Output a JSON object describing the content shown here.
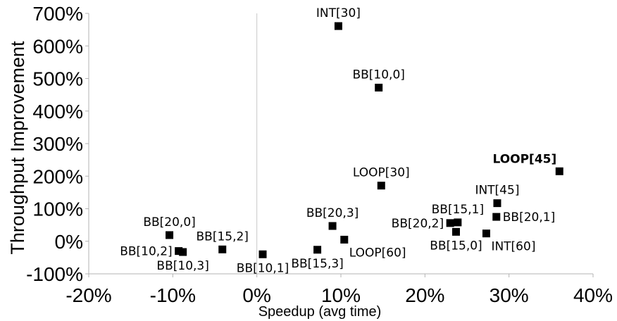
{
  "chart_data": {
    "type": "scatter",
    "title": "",
    "xlabel": "Speedup (avg time)",
    "ylabel": "Throughput Improvement",
    "xlim": [
      -20,
      40
    ],
    "ylim": [
      -100,
      700
    ],
    "xticks": [
      "-20%",
      "-10%",
      "0%",
      "10%",
      "20%",
      "30%",
      "40%"
    ],
    "yticks": [
      "700%",
      "600%",
      "500%",
      "400%",
      "300%",
      "200%",
      "100%",
      "0%",
      "-100%"
    ],
    "grid": "major vertical line at x=0 only",
    "legend": "none",
    "marker": "square",
    "marker_color": "#000000",
    "points": [
      {
        "label": "INT[30]",
        "x": 9.7,
        "y": 661,
        "label_pos": "above"
      },
      {
        "label": "BB[10,0]",
        "x": 14.5,
        "y": 472,
        "label_pos": "above"
      },
      {
        "label": "LOOP[45]",
        "x": 36.0,
        "y": 215,
        "label_pos": "above-left",
        "bold": true
      },
      {
        "label": "LOOP[30]",
        "x": 14.8,
        "y": 171,
        "label_pos": "above"
      },
      {
        "label": "INT[45]",
        "x": 28.6,
        "y": 117,
        "label_pos": "above"
      },
      {
        "label": "BB[15,1]",
        "x": 23.9,
        "y": 58,
        "label_pos": "above"
      },
      {
        "label": "BB[20,1]",
        "x": 28.5,
        "y": 75,
        "label_pos": "right"
      },
      {
        "label": "BB[20,2]",
        "x": 23.0,
        "y": 56,
        "label_pos": "left"
      },
      {
        "label": "BB[15,0]",
        "x": 23.7,
        "y": 29,
        "label_pos": "below"
      },
      {
        "label": "INT[60]",
        "x": 27.3,
        "y": 24,
        "label_pos": "below-right"
      },
      {
        "label": "BB[20,3]",
        "x": 9.0,
        "y": 47,
        "label_pos": "above"
      },
      {
        "label": "LOOP[60]",
        "x": 10.4,
        "y": 5,
        "label_pos": "below-right"
      },
      {
        "label": "BB[15,3]",
        "x": 7.2,
        "y": -26,
        "label_pos": "below"
      },
      {
        "label": "BB[10,1]",
        "x": 0.7,
        "y": -40,
        "label_pos": "below"
      },
      {
        "label": "BB[15,2]",
        "x": -4.1,
        "y": -25,
        "label_pos": "above"
      },
      {
        "label": "BB[20,0]",
        "x": -10.4,
        "y": 19,
        "label_pos": "above"
      },
      {
        "label": "BB[10,2]",
        "x": -9.3,
        "y": -30,
        "label_pos": "left"
      },
      {
        "label": "BB[10,3]",
        "x": -8.8,
        "y": -33,
        "label_pos": "below"
      }
    ]
  }
}
